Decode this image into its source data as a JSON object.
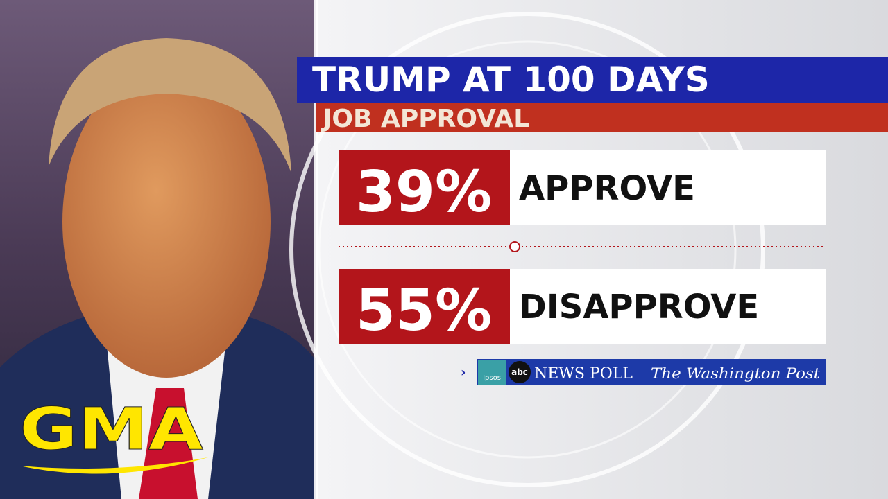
{
  "header": {
    "title": "TRUMP AT 100 DAYS",
    "subtitle": "JOB APPROVAL"
  },
  "results": [
    {
      "value": "39%",
      "label": "APPROVE"
    },
    {
      "value": "55%",
      "label": "DISAPPROVE"
    }
  ],
  "source": {
    "pollster": "Ipsos",
    "network": "abc",
    "poll": "NEWS POLL",
    "partner": "The Washington Post"
  },
  "logo": "GMA"
}
